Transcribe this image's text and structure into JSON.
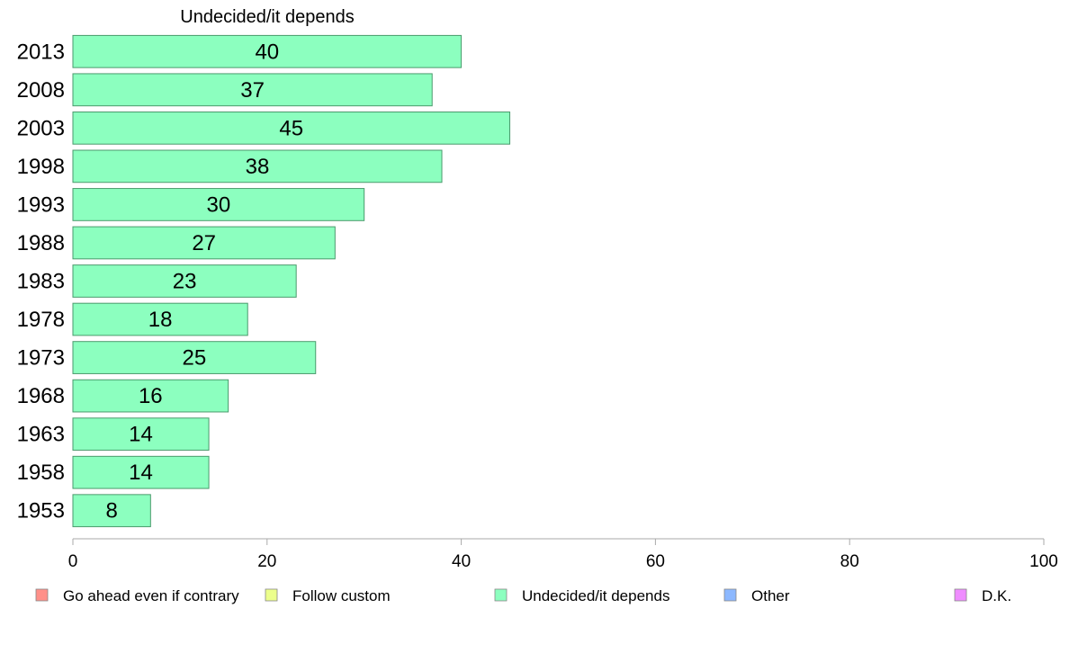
{
  "chart_data": {
    "type": "bar",
    "orientation": "horizontal",
    "title": "Undecided/it depends",
    "categories": [
      "2013",
      "2008",
      "2003",
      "1998",
      "1993",
      "1988",
      "1983",
      "1978",
      "1973",
      "1968",
      "1963",
      "1958",
      "1953"
    ],
    "series": [
      {
        "name": "Undecided/it depends",
        "values": [
          40,
          37,
          45,
          38,
          30,
          27,
          23,
          18,
          25,
          16,
          14,
          14,
          8
        ],
        "color": "#8cffbf"
      }
    ],
    "xlim": [
      0,
      100
    ],
    "xticks": [
      0,
      20,
      40,
      60,
      80,
      100
    ],
    "grid": false,
    "legend": {
      "placement": "bottom",
      "entries": [
        {
          "label": "Go ahead even if contrary",
          "color": "#ff9089"
        },
        {
          "label": "Follow custom",
          "color": "#ecff8c"
        },
        {
          "label": "Undecided/it depends",
          "color": "#8cffbf"
        },
        {
          "label": "Other",
          "color": "#8cb8ff"
        },
        {
          "label": "D.K.",
          "color": "#ef8cff"
        }
      ]
    },
    "colors": {
      "bar_stroke": "#4a9a6c",
      "axis": "#aaaaaa"
    }
  }
}
